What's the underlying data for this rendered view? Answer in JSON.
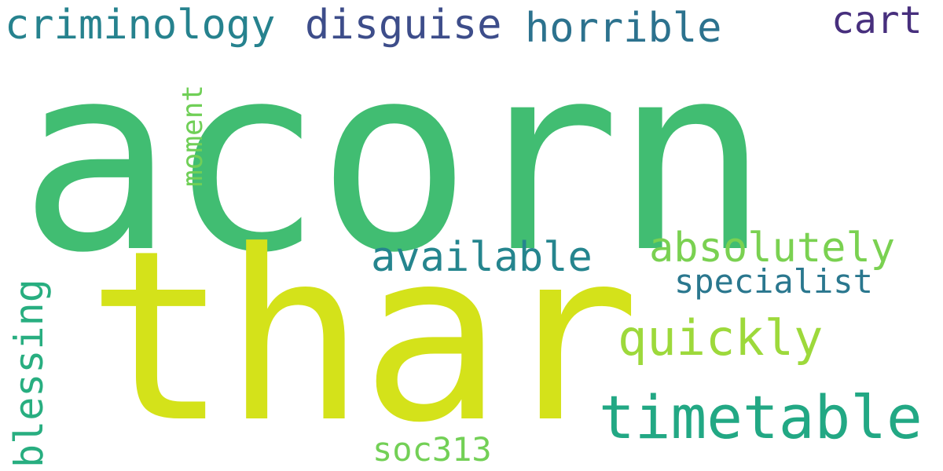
{
  "words": {
    "acorn": {
      "text": "acorn",
      "color": "#41bd72"
    },
    "thar": {
      "text": "thar",
      "color": "#d4e21a"
    },
    "criminology": {
      "text": "criminology",
      "color": "#26828e"
    },
    "disguise": {
      "text": "disguise",
      "color": "#3d4d8a"
    },
    "horrible": {
      "text": "horrible",
      "color": "#2c728e"
    },
    "cart": {
      "text": "cart",
      "color": "#472f7d"
    },
    "available": {
      "text": "available",
      "color": "#25858e"
    },
    "absolutely": {
      "text": "absolutely",
      "color": "#7ad151"
    },
    "specialist": {
      "text": "specialist",
      "color": "#2a778e"
    },
    "quickly": {
      "text": "quickly",
      "color": "#9dd93b"
    },
    "timetable": {
      "text": "timetable",
      "color": "#22a884"
    },
    "soc313": {
      "text": "soc313",
      "color": "#73d056"
    },
    "moment": {
      "text": "moment",
      "color": "#70cf57"
    },
    "blessing": {
      "text": "blessing",
      "color": "#28ae80"
    }
  }
}
